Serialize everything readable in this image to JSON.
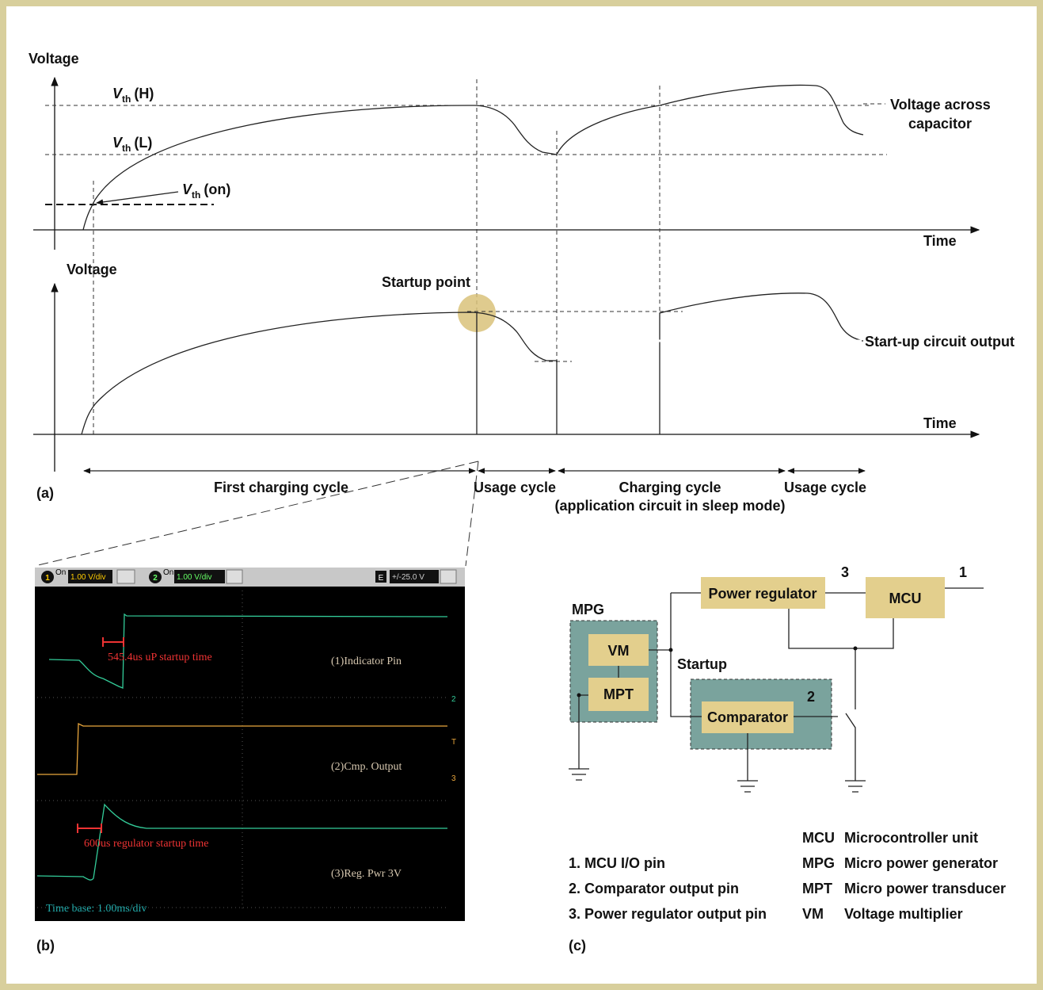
{
  "panel_a": {
    "label": "(a)",
    "top_axis": {
      "y_label": "Voltage",
      "x_label": "Time"
    },
    "vth_h": {
      "symbol": "V",
      "sub": "th",
      "suffix": "(H)"
    },
    "vth_l": {
      "symbol": "V",
      "sub": "th",
      "suffix": "(L)"
    },
    "vth_on": {
      "symbol": "V",
      "sub": "th",
      "suffix": "(on)"
    },
    "capacitor_label": [
      "Voltage across",
      "capacitor"
    ],
    "bottom_axis": {
      "y_label": "Voltage",
      "x_label": "Time"
    },
    "startup_point": "Startup point",
    "output_label": "Start-up circuit output",
    "cycles": {
      "first": "First charging cycle",
      "usage1": "Usage cycle",
      "charging": "Charging cycle",
      "charging_note": "(application circuit in sleep mode)",
      "usage2": "Usage cycle"
    }
  },
  "panel_b": {
    "label": "(b)",
    "ch1": {
      "num": "1",
      "on": "On",
      "scale": "1.00 V/div"
    },
    "ch2": {
      "num": "2",
      "on": "On",
      "scale": "1.00 V/div"
    },
    "ext": {
      "icon": "E",
      "range": "+/-25.0 V"
    },
    "markers": [
      "2",
      "T",
      "3"
    ],
    "annotations": [
      "545.4us uP startup time",
      "(1)Indicator Pin",
      "(2)Cmp. Output",
      "600us regulator startup time",
      "(3)Reg. Pwr 3V",
      "Time base: 1.00ms/div"
    ]
  },
  "panel_c": {
    "label": "(c)",
    "blocks": {
      "mpg": "MPG",
      "vm": "VM",
      "mpt": "MPT",
      "regulator": "Power regulator",
      "mcu": "MCU",
      "startup": "Startup",
      "comparator": "Comparator"
    },
    "pins": {
      "p3": "3",
      "p1": "1",
      "p2": "2"
    },
    "pin_list": [
      "1. MCU I/O pin",
      "2. Comparator output pin",
      "3. Power regulator output pin"
    ],
    "abbreviations": [
      [
        "MCU",
        "Microcontroller unit"
      ],
      [
        "MPG",
        "Micro power generator"
      ],
      [
        "MPT",
        "Micro power transducer"
      ],
      [
        "VM",
        "Voltage multiplier"
      ]
    ]
  }
}
